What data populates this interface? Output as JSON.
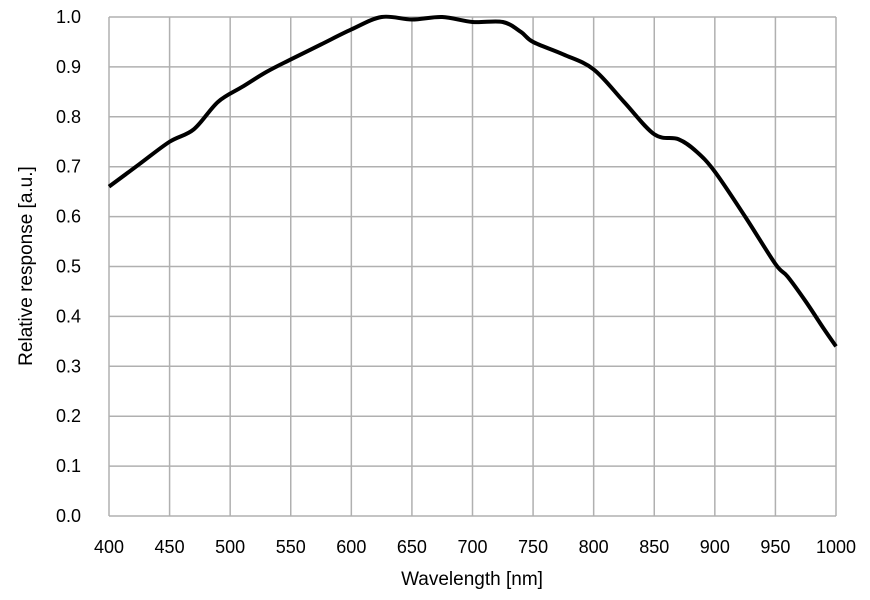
{
  "chart_data": {
    "type": "line",
    "title": "",
    "xlabel": "Wavelength [nm]",
    "ylabel": "Relative response [a.u.]",
    "xlim": [
      400,
      1000
    ],
    "ylim": [
      0.0,
      1.0
    ],
    "grid": true,
    "x_ticks": [
      "400",
      "450",
      "500",
      "550",
      "600",
      "650",
      "700",
      "750",
      "800",
      "850",
      "900",
      "950",
      "1000"
    ],
    "y_ticks": [
      "0.0",
      "0.1",
      "0.2",
      "0.3",
      "0.4",
      "0.5",
      "0.6",
      "0.7",
      "0.8",
      "0.9",
      "1.0"
    ],
    "line_color": "#000000",
    "grid_color": "#b0b0b0",
    "series": [
      {
        "x": [
          400,
          425,
          450,
          470,
          490,
          510,
          530,
          550,
          575,
          600,
          625,
          650,
          675,
          700,
          725,
          740,
          750,
          775,
          800,
          825,
          850,
          870,
          885,
          900,
          925,
          950,
          960,
          975,
          990,
          1000
        ],
        "y": [
          0.66,
          0.705,
          0.75,
          0.775,
          0.83,
          0.86,
          0.89,
          0.915,
          0.945,
          0.975,
          1.0,
          0.995,
          1.0,
          0.99,
          0.99,
          0.97,
          0.95,
          0.925,
          0.895,
          0.83,
          0.765,
          0.755,
          0.73,
          0.69,
          0.6,
          0.505,
          0.48,
          0.43,
          0.375,
          0.34
        ]
      }
    ]
  }
}
